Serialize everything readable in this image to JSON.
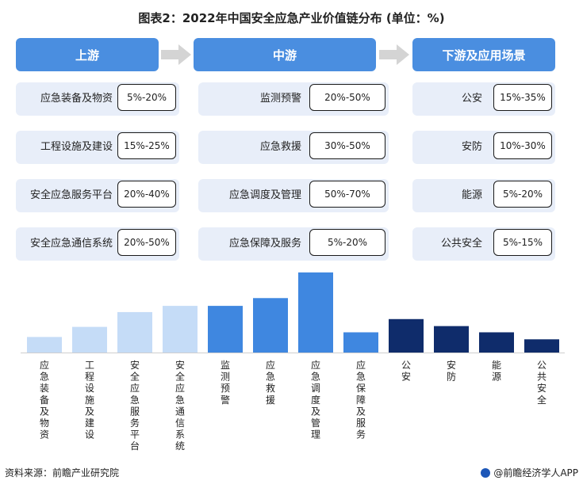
{
  "title": "图表2：2022年中国安全应急产业价值链分布 (单位：%)",
  "stages": [
    {
      "label": "上游",
      "items": [
        {
          "name": "应急装备及物资",
          "range": "5%-20%"
        },
        {
          "name": "工程设施及建设",
          "range": "15%-25%"
        },
        {
          "name": "安全应急服务平台",
          "range": "20%-40%"
        },
        {
          "name": "安全应急通信系统",
          "range": "20%-50%"
        }
      ]
    },
    {
      "label": "中游",
      "items": [
        {
          "name": "监测预警",
          "range": "20%-50%"
        },
        {
          "name": "应急救援",
          "range": "30%-50%"
        },
        {
          "name": "应急调度及管理",
          "range": "50%-70%"
        },
        {
          "name": "应急保障及服务",
          "range": "5%-20%"
        }
      ]
    },
    {
      "label": "下游及应用场景",
      "items": [
        {
          "name": "公安",
          "range": "15%-35%"
        },
        {
          "name": "安防",
          "range": "10%-30%"
        },
        {
          "name": "能源",
          "range": "5%-20%"
        },
        {
          "name": "公共安全",
          "range": "5%-15%"
        }
      ]
    }
  ],
  "chart_data": {
    "type": "bar",
    "categories": [
      "应急装备及物资",
      "工程设施及建设",
      "安全应急服务平台",
      "安全应急通信系统",
      "监测预警",
      "应急救援",
      "应急调度及管理",
      "应急保障及服务",
      "公安",
      "安防",
      "能源",
      "公共安全"
    ],
    "values": [
      20,
      33,
      52,
      60,
      60,
      70,
      103,
      26,
      43,
      34,
      26,
      17
    ],
    "bar_colors": [
      "#c5dcf7",
      "#c5dcf7",
      "#c5dcf7",
      "#c5dcf7",
      "#3f87e0",
      "#3f87e0",
      "#3f87e0",
      "#3f87e0",
      "#0f2c6b",
      "#0f2c6b",
      "#0f2c6b",
      "#0f2c6b"
    ],
    "ylim": [
      0,
      110
    ],
    "grid": false,
    "title": "",
    "xlabel": "",
    "ylabel": ""
  },
  "colors": {
    "stage_header": "#4a8ee0",
    "cell_bg": "#e8eef9",
    "arrow": "#d4d4d4"
  },
  "footer": {
    "source": "资料来源：前瞻产业研究院",
    "brand": "@前瞻经济学人APP"
  }
}
